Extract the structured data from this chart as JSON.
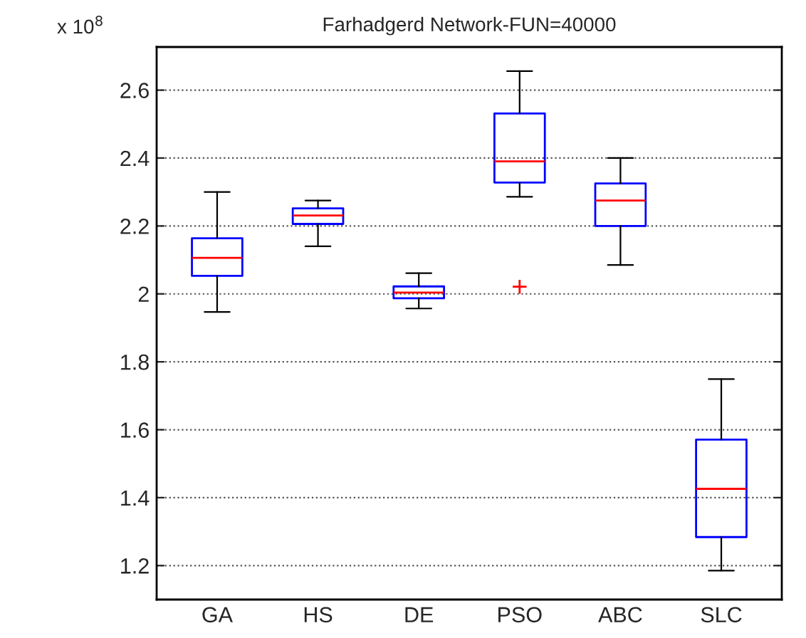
{
  "chart_data": {
    "type": "box",
    "title": "Farhadgerd Network-FUN=40000",
    "categories": [
      "GA",
      "HS",
      "DE",
      "PSO",
      "ABC",
      "SLC"
    ],
    "boxes": [
      {
        "low": 1.947,
        "q1": 2.053,
        "median": 2.106,
        "q3": 2.164,
        "high": 2.3
      },
      {
        "low": 2.14,
        "q1": 2.206,
        "median": 2.231,
        "q3": 2.252,
        "high": 2.275
      },
      {
        "low": 1.957,
        "q1": 1.987,
        "median": 2.004,
        "q3": 2.022,
        "high": 2.061
      },
      {
        "low": 2.286,
        "q1": 2.328,
        "median": 2.39,
        "q3": 2.531,
        "high": 2.656,
        "outliers": [
          2.021
        ]
      },
      {
        "low": 2.085,
        "q1": 2.2,
        "median": 2.275,
        "q3": 2.325,
        "high": 2.4
      },
      {
        "low": 1.185,
        "q1": 1.284,
        "median": 1.426,
        "q3": 1.571,
        "high": 1.749
      }
    ],
    "color": "#0000ff",
    "ylim": [
      1.1,
      2.727
    ],
    "yticks": [
      1.2,
      1.4,
      1.6,
      1.8,
      2,
      2.2,
      2.4,
      2.6
    ],
    "annotations": [
      "x 10$^{8}$"
    ],
    "grid": "y"
  }
}
